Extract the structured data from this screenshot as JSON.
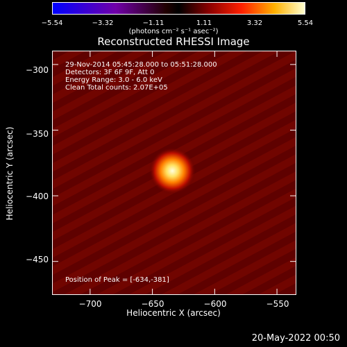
{
  "colorbar": {
    "ticks": [
      "−5.54",
      "−3.32",
      "−1.11",
      "1.11",
      "3.32",
      "5.54"
    ],
    "unit_text": "(photons cm⁻² s⁻¹ asec⁻²)"
  },
  "chart_data": {
    "type": "heatmap",
    "title": "Reconstructed RHESSI Image",
    "xlabel": "Heliocentric X (arcsec)",
    "ylabel": "Heliocentric Y (arcsec)",
    "xlim": [
      -730,
      -535
    ],
    "ylim": [
      -475,
      -290
    ],
    "x_ticks": [
      "−700",
      "−650",
      "−600",
      "−550"
    ],
    "x_tick_values": [
      -700,
      -650,
      -600,
      -550
    ],
    "y_ticks": [
      "−300",
      "−350",
      "−400",
      "−450"
    ],
    "y_tick_values": [
      -300,
      -350,
      -400,
      -450
    ],
    "colorbar_range": [
      -5.54,
      5.54
    ],
    "peak": {
      "x": -634,
      "y": -381
    },
    "annotations": [
      "29-Nov-2014 05:45:28.000 to 05:51:28.000",
      "Detectors: 3F 6F 9F, Att 0",
      "Energy Range: 3.0 - 6.0 keV",
      "Clean    Total counts: 2.07E+05"
    ],
    "peak_label": "Position of Peak = [-634,-381]"
  },
  "footer": {
    "timestamp": "20-May-2022 00:50"
  }
}
